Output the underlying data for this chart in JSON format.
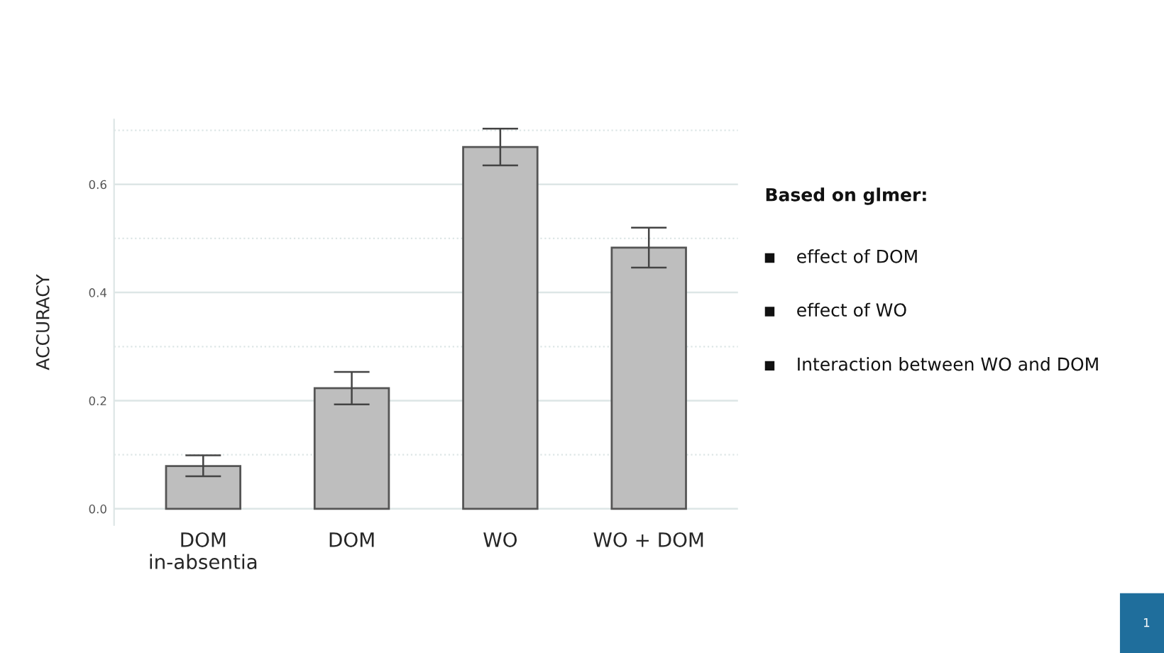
{
  "chart_data": {
    "type": "bar",
    "ylabel": "ACCURACY",
    "categories": [
      "DOM\nin-absentia",
      "DOM",
      "WO",
      "WO + DOM"
    ],
    "values": [
      0.079,
      0.223,
      0.669,
      0.483
    ],
    "errors": [
      [
        0.06,
        0.099
      ],
      [
        0.193,
        0.253
      ],
      [
        0.635,
        0.703
      ],
      [
        0.446,
        0.52
      ]
    ],
    "color": "#bebebe",
    "ylim": [
      -0.03,
      0.72
    ],
    "yticks": [
      {
        "value": 0.0,
        "label": "0.0"
      },
      0.2,
      0.4,
      0.6
    ],
    "grid": "y",
    "annotations": [
      "Based on glmer:",
      "effect of DOM",
      "effect of WO",
      "Interaction between WO and DOM",
      "1"
    ]
  }
}
